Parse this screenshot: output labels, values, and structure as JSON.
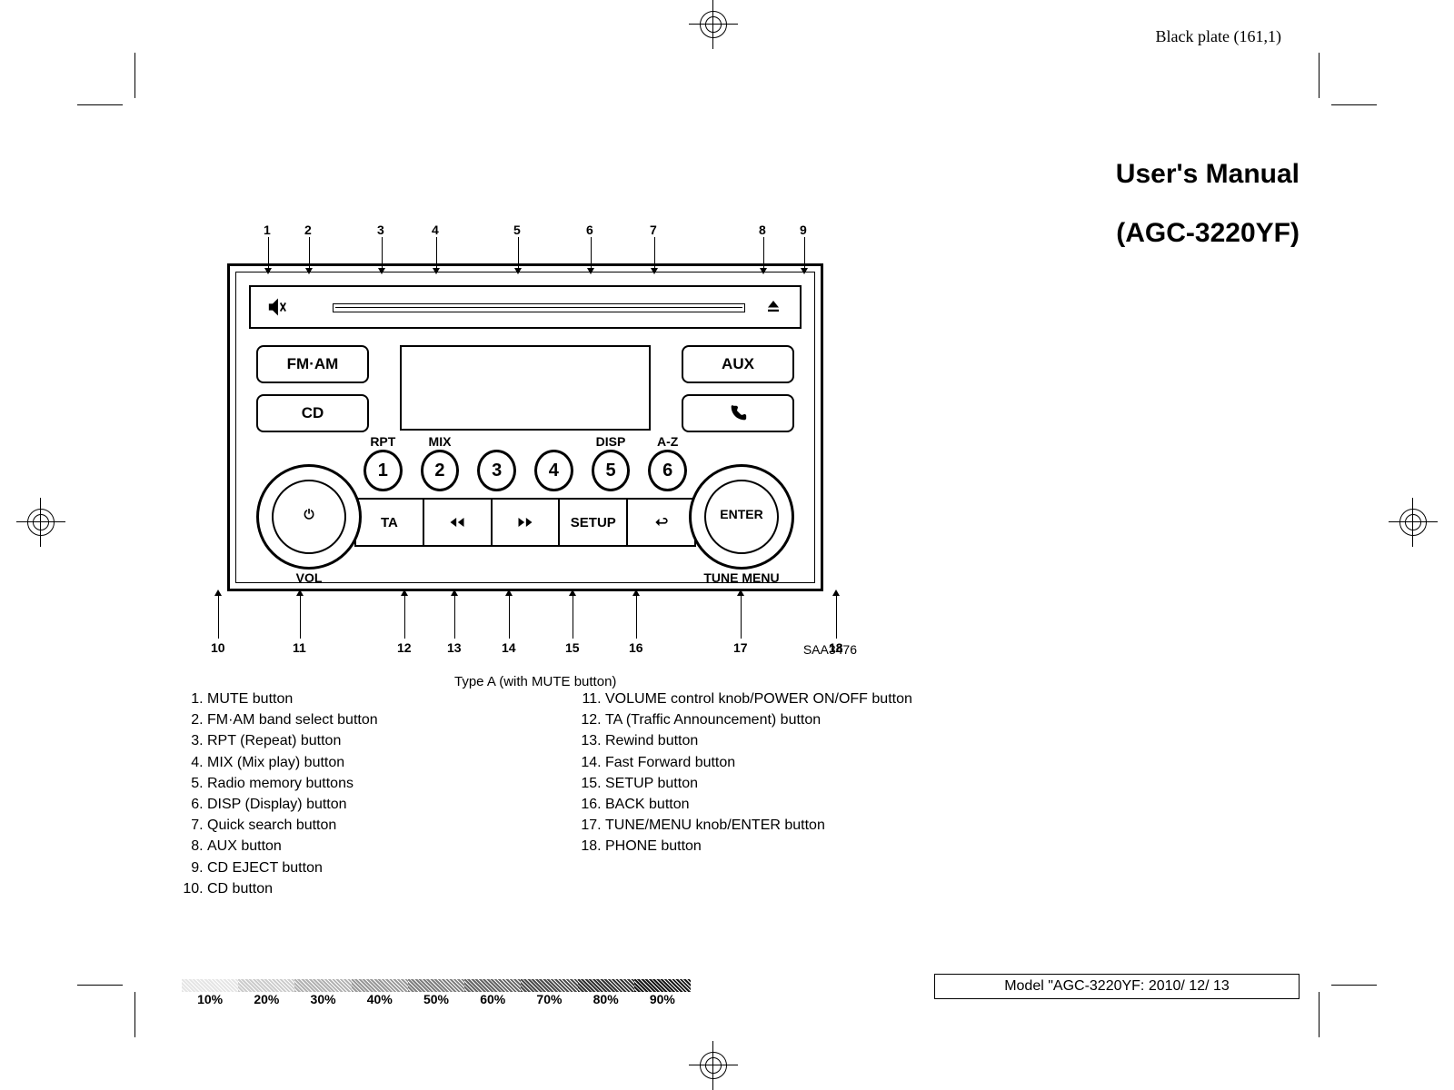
{
  "plate_label": "Black plate (161,1)",
  "title_line1": "User's Manual",
  "title_line2": "(AGC-3220YF)",
  "figure_id": "SAA3476",
  "caption": "Type A (with MUTE button)",
  "model_box": "Model \"AGC-3220YF:  2010/ 12/ 13",
  "sidebuttons": {
    "left": [
      "FM·AM",
      "CD"
    ],
    "right": [
      "AUX"
    ]
  },
  "knob_left": {
    "inner": "⏻",
    "outer": "VOL"
  },
  "knob_right": {
    "inner": "ENTER",
    "outer": "TUNE  MENU"
  },
  "presets": [
    {
      "num": "1",
      "label": "RPT"
    },
    {
      "num": "2",
      "label": "MIX"
    },
    {
      "num": "3",
      "label": ""
    },
    {
      "num": "4",
      "label": ""
    },
    {
      "num": "5",
      "label": "DISP"
    },
    {
      "num": "6",
      "label": "A-Z"
    }
  ],
  "lower_panel": [
    "TA",
    "prev",
    "next",
    "SETUP",
    "back"
  ],
  "callouts_top": [
    "1",
    "2",
    "3",
    "4",
    "5",
    "6",
    "7",
    "8",
    "9"
  ],
  "callouts_bottom": [
    "10",
    "11",
    "12",
    "13",
    "14",
    "15",
    "16",
    "17",
    "18"
  ],
  "legend_left": [
    "MUTE button",
    "FM·AM band select button",
    "RPT (Repeat) button",
    "MIX (Mix play) button",
    "Radio memory buttons",
    "DISP (Display) button",
    "Quick search button",
    "AUX button",
    "CD EJECT button",
    "CD button"
  ],
  "legend_right_start": 11,
  "legend_right": [
    "VOLUME control knob/POWER ON/OFF button",
    "TA (Traffic Announcement) button",
    "Rewind button",
    "Fast Forward button",
    "SETUP button",
    "BACK button",
    "TUNE/MENU knob/ENTER button",
    "PHONE button"
  ],
  "tint_labels": [
    "10%",
    "20%",
    "30%",
    "40%",
    "50%",
    "60%",
    "70%",
    "80%",
    "90%"
  ],
  "colors": {
    "fg": "#000000",
    "bg": "#ffffff"
  }
}
